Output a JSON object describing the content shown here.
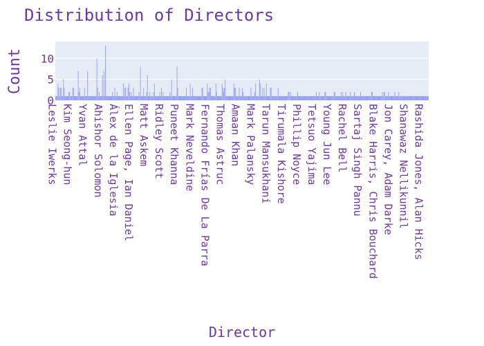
{
  "chart_data": {
    "type": "bar",
    "title": "Distribution of Directors",
    "xlabel": "Director",
    "ylabel": "Count",
    "ylim": [
      0,
      14
    ],
    "yticks": [
      0,
      5,
      10
    ],
    "grid": true,
    "legend": "none",
    "colors": {
      "plot_bg": "#e5ecf6",
      "grid": "#ffffff",
      "bar": "#636efa",
      "text": "#6a3aa0"
    },
    "categories": [
      "Leslie Iwerks",
      "Kim Seong-hun",
      "Yvan Attal",
      "Ahishor Solomon",
      "Álex de la Iglesia",
      "Ellen Page, Ian Daniel",
      "Matt Askem",
      "Ridley Scott",
      "Puneet Khanna",
      "Mark Neveldine",
      "Fernando Frías De La Parra",
      "Thomas Astruc",
      "Amaan Khan",
      "Mark Palansky",
      "Tarun Mansukhani",
      "Tirumala Kishore",
      "Phillip Noyce",
      "Tetsuo Yajima",
      "Young Jun Lee",
      "Rachel Bell",
      "Sartaj Singh Pannu",
      "Blake Harris, Chris Bouchard",
      "Jon Carey, Adam Darke",
      "Shanawaz Nellikunnil",
      "Rashida Jones, Alan Hicks"
    ],
    "total_bars": 480,
    "peaks": [
      {
        "after_label_fraction": 0.02,
        "value": 5
      },
      {
        "after_label_fraction": 0.06,
        "value": 7
      },
      {
        "after_label_fraction": 0.085,
        "value": 7
      },
      {
        "after_label_fraction": 0.11,
        "value": 10
      },
      {
        "after_label_fraction": 0.125,
        "value": 6
      },
      {
        "after_label_fraction": 0.13,
        "value": 7
      },
      {
        "after_label_fraction": 0.133,
        "value": 13
      },
      {
        "after_label_fraction": 0.228,
        "value": 8
      },
      {
        "after_label_fraction": 0.245,
        "value": 6
      },
      {
        "after_label_fraction": 0.325,
        "value": 8
      },
      {
        "after_label_fraction": 0.31,
        "value": 5
      },
      {
        "after_label_fraction": 0.445,
        "value": 4
      },
      {
        "after_label_fraction": 0.455,
        "value": 5
      },
      {
        "after_label_fraction": 0.535,
        "value": 4
      },
      {
        "after_label_fraction": 0.546,
        "value": 5
      },
      {
        "after_label_fraction": 0.595,
        "value": 3
      }
    ]
  }
}
